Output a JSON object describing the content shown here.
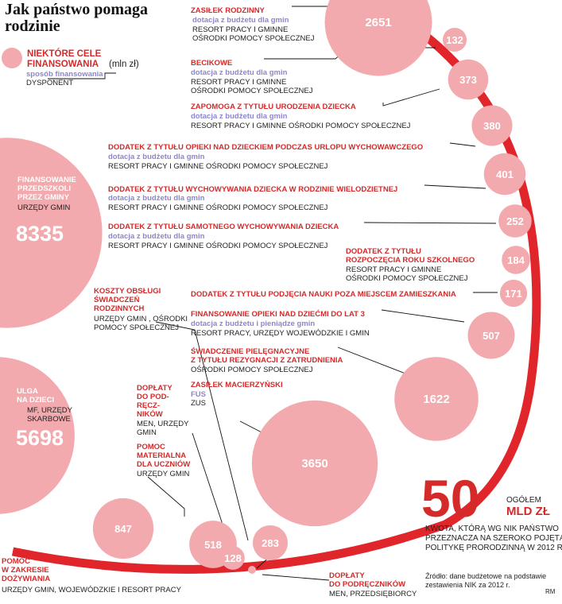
{
  "header": {
    "title": "Jak państwo pomaga rodzinie"
  },
  "legend": {
    "line1": "NIEKTÓRE CELE",
    "line2": "FINANSOWANIA",
    "unit": "(mln zł)",
    "method": "sposób finansowania",
    "disponent": "DYSPONENT"
  },
  "colors": {
    "bubble": "#f2aaae",
    "accent": "#e0262b",
    "ring": "#e0262b",
    "method": "#8c86cf"
  },
  "chart_data": {
    "type": "bubble",
    "unit": "mln zł",
    "items": [
      {
        "name": "ZASIŁEK RODZINNY",
        "value": 2651,
        "method": "dotacja z budżetu dla gmin",
        "disponent": "RESORT PRACY I GMINNE OŚRODKI POMOCY SPOŁECZNEJ"
      },
      {
        "name": "BECIKOWE",
        "value": 132,
        "method": "dotacja z budżetu dla gmin",
        "disponent": "RESORT PRACY I GMINNE OŚRODKI POMOCY SPOŁECZNEJ"
      },
      {
        "name": "ZAPOMOGA Z TYTUŁU URODZENIA DZIECKA",
        "value": 373,
        "method": "dotacja z budżetu dla gmin",
        "disponent": "RESORT PRACY I GMINNE OŚRODKI POMOCY SPOŁECZNEJ"
      },
      {
        "name": "DODATEK Z TYTUŁU OPIEKI NAD DZIECKIEM PODCZAS URLOPU WYCHOWAWCZEGO",
        "value": 380,
        "method": "dotacja z budżetu dla gmin",
        "disponent": "RESORT PRACY I GMINNE OŚRODKI POMOCY SPOŁECZNEJ"
      },
      {
        "name": "DODATEK Z TYTUŁU WYCHOWYWANIA DZIECKA W RODZINIE WIELODZIETNEJ",
        "value": 401,
        "method": "dotacja z budżetu dla gmin",
        "disponent": "RESORT PRACY I GMINNE OŚRODKI POMOCY SPOŁECZNEJ"
      },
      {
        "name": "DODATEK Z TYTUŁU SAMOTNEGO WYCHOWYWANIA DZIECKA",
        "value": 252,
        "method": "dotacja z budżetu dla gmin",
        "disponent": "RESORT PRACY I GMINNE OŚRODKI POMOCY SPOŁECZNEJ"
      },
      {
        "name": "DODATEK Z TYTUŁU ROZPOCZĘCIA ROKU SZKOLNEGO",
        "value": 184,
        "disponent": "RESORT PRACY I GMINNE OŚRODKI POMOCY SPOŁECZNEJ"
      },
      {
        "name": "DODATEK Z TYTUŁU PODJĘCIA NAUKI POZA MIEJSCEM ZAMIESZKANIA",
        "value": 171
      },
      {
        "name": "FINANSOWANIE OPIEKI NAD DZIEĆMI DO LAT 3",
        "value": 507,
        "method": "dotacja z budżetu i pieniądze gmin",
        "disponent": "RESORT PRACY, URZĘDY WOJEWÓDZKIE I GMIN"
      },
      {
        "name": "ŚWIADCZENIE PIELĘGNACYJNE Z TYTUŁU REZYGNACJI Z ZATRUDNIENIA",
        "value": 1622,
        "disponent": "OŚRODKI POMOCY SPOŁECZNEJ"
      },
      {
        "name": "ZASIŁEK MACIERZYŃSKI",
        "value": 3650,
        "method": "FUS",
        "disponent": "ZUS"
      },
      {
        "name": "FINANSOWANIE PRZEDSZKOLI PRZEZ GMINY",
        "value": 8335,
        "disponent": "URZĘDY GMIN"
      },
      {
        "name": "ULGA NA DZIECI",
        "value": 5698,
        "disponent": "MF, URZĘDY SKARBOWE"
      },
      {
        "name": "POMOC W ZAKRESIE DOŻYWIANIA",
        "value": 847,
        "disponent": "URZĘDY GMIN, WOJEWÓDZKIE I RESORT PRACY"
      },
      {
        "name": "POMOC MATERIALNA DLA UCZNIÓW",
        "value": 518,
        "disponent": "URZĘDY GMIN"
      },
      {
        "name": "DOPŁATY DO PODRĘCZNIKÓW",
        "value": 128,
        "disponent": "MEN, URZĘDY GMIN"
      },
      {
        "name": "KOSZTY OBSŁUGI ŚWIADCZEŃ RODZINNYCH",
        "value": 283,
        "disponent": "URZĘDY GMIN , OŚRODKI POMOCY SPOŁECZNEJ"
      },
      {
        "name": "DOPŁATY DO PODRĘCZNIKÓW",
        "value": 7,
        "disponent": "MEN, PRZEDSIĘBIORCY"
      }
    ],
    "total": {
      "value": "50",
      "unit": "MLD ZŁ",
      "label": "OGÓŁEM"
    }
  },
  "labels": {
    "zasilek": {
      "name": "ZASIŁEK RODZINNY",
      "method": "dotacja z budżetu dla gmin",
      "disp1": "RESORT PRACY I GMINNE",
      "disp2": "OŚRODKI POMOCY SPOŁECZNEJ"
    },
    "becikowe": {
      "name": "BECIKOWE",
      "method": "dotacja z budżetu dla gmin",
      "disp1": "RESORT PRACY I GMINNE",
      "disp2": "OŚRODKI POMOCY SPOŁECZNEJ"
    },
    "zapomoga": {
      "name": "ZAPOMOGA Z TYTUŁU URODZENIA DZIECKA",
      "method": "dotacja z budżetu dla gmin",
      "disp": "RESORT PRACY I GMINNE OŚRODKI POMOCY SPOŁECZNEJ"
    },
    "urlop": {
      "name": "DODATEK Z TYTUŁU OPIEKI NAD DZIECKIEM PODCZAS URLOPU WYCHOWAWCZEGO",
      "method": "dotacja z budżetu dla gmin",
      "disp": "RESORT PRACY I GMINNE OŚRODKI POMOCY SPOŁECZNEJ"
    },
    "wielodz": {
      "name": "DODATEK Z TYTUŁU WYCHOWYWANIA DZIECKA W RODZINIE WIELODZIETNEJ",
      "method": "dotacja z budżetu dla gmin",
      "disp": "RESORT PRACY I GMINNE OŚRODKI POMOCY SPOŁECZNEJ"
    },
    "samotne": {
      "name": "DODATEK Z TYTUŁU SAMOTNEGO WYCHOWYWANIA DZIECKA",
      "method": "dotacja z budżetu dla gmin",
      "disp": "RESORT PRACY I GMINNE OŚRODKI POMOCY SPOŁECZNEJ"
    },
    "rok": {
      "name1": "DODATEK Z TYTUŁU",
      "name2": "ROZPOCZĘCIA ROKU SZKOLNEGO",
      "disp1": "RESORT PRACY I GMINNE",
      "disp2": "OŚRODKI POMOCY SPOŁECZNEJ"
    },
    "nauka": {
      "name": "DODATEK Z TYTUŁU PODJĘCIA NAUKI POZA MIEJSCEM ZAMIESZKANIA"
    },
    "opieka3": {
      "name": "FINANSOWANIE OPIEKI NAD DZIEĆMI DO LAT 3",
      "method": "dotacja z budżetu i pieniądze  gmin",
      "disp": "RESORT PRACY, URZĘDY WOJEWÓDZKIE I GMIN"
    },
    "pielegn": {
      "name1": "ŚWIADCZENIE PIELĘGNACYJNE",
      "name2": "Z TYTUŁU REZYGNACJI Z ZATRUDNIENIA",
      "disp": "OŚRODKI POMOCY SPOŁECZNEJ"
    },
    "macierz": {
      "name": "ZASIŁEK MACIERZYŃSKI",
      "method": "FUS",
      "disp": "ZUS"
    },
    "koszty": {
      "name1": "KOSZTY OBSŁUGI",
      "name2": "ŚWIADCZEŃ",
      "name3": "RODZINNYCH",
      "disp1": "URZĘDY GMIN , OŚRODKI",
      "disp2": "POMOCY SPOŁECZNEJ"
    },
    "doplaty1": {
      "name1": "DOPŁATY",
      "name2": "DO POD-",
      "name3": "RĘCZ-",
      "name4": "NIKÓW",
      "disp1": "MEN, URZĘDY",
      "disp2": "GMIN"
    },
    "pomocmat": {
      "name1": "POMOC",
      "name2": "MATERIALNA",
      "name3": "DLA UCZNIÓW",
      "disp": "URZĘDY GMIN"
    },
    "przedszkola": {
      "name1": "FINANSOWANIE",
      "name2": "PRZEDSZKOLI",
      "name3": "PRZEZ GMINY",
      "disp": "URZĘDY GMIN",
      "value": "8335"
    },
    "ulga": {
      "name1": "ULGA",
      "name2": "NA DZIECI",
      "disp1": "MF, URZĘDY",
      "disp2": "SKARBOWE",
      "value": "5698"
    },
    "dozyw": {
      "name1": "POMOC",
      "name2": "W ZAKRESIE",
      "name3": "DOŻYWIANIA",
      "disp": "URZĘDY GMIN, WOJEWÓDZKIE I RESORT PRACY"
    },
    "doplaty2": {
      "name1": "DOPŁATY",
      "name2": "DO PODRĘCZNIKÓW",
      "disp": "MEN, PRZEDSIĘBIORCY"
    }
  },
  "summary": {
    "big": "50",
    "label": "OGÓŁEM",
    "unit": "MLD ZŁ",
    "desc1": "KWOTA, KTÓRĄ WG NIK PAŃSTWO",
    "desc2": "PRZEZNACZA NA SZEROKO POJĘTĄ",
    "desc3": "POLITYKĘ PRORODZINNĄ W 2012 R."
  },
  "footer": {
    "source1": "Źródło: dane budżetowe na podstawie",
    "source2": "zestawienia NIK za 2012 r.",
    "credit": "RM"
  }
}
